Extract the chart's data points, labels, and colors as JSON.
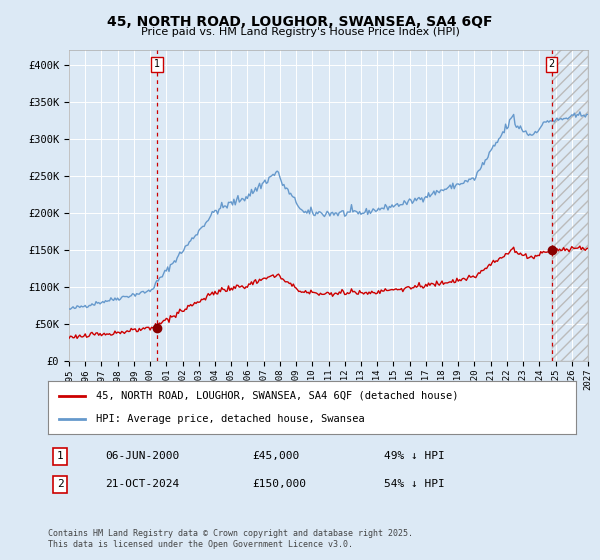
{
  "title": "45, NORTH ROAD, LOUGHOR, SWANSEA, SA4 6QF",
  "subtitle": "Price paid vs. HM Land Registry's House Price Index (HPI)",
  "background_color": "#dce9f5",
  "plot_bg_color": "#dce9f5",
  "hpi_color": "#6699cc",
  "price_color": "#cc0000",
  "marker_color": "#880000",
  "dashed_line_color": "#cc0000",
  "transaction1_date": "06-JUN-2000",
  "transaction1_price": 45000,
  "transaction1_hpi_pct": "49%",
  "transaction2_date": "21-OCT-2024",
  "transaction2_price": 150000,
  "transaction2_hpi_pct": "54%",
  "legend_label1": "45, NORTH ROAD, LOUGHOR, SWANSEA, SA4 6QF (detached house)",
  "legend_label2": "HPI: Average price, detached house, Swansea",
  "footnote": "Contains HM Land Registry data © Crown copyright and database right 2025.\nThis data is licensed under the Open Government Licence v3.0.",
  "ylim": [
    0,
    420000
  ],
  "yticks": [
    0,
    50000,
    100000,
    150000,
    200000,
    250000,
    300000,
    350000,
    400000
  ],
  "ytick_labels": [
    "£0",
    "£50K",
    "£100K",
    "£150K",
    "£200K",
    "£250K",
    "£300K",
    "£350K",
    "£400K"
  ],
  "xstart_year": 1995,
  "xend_year": 2027
}
